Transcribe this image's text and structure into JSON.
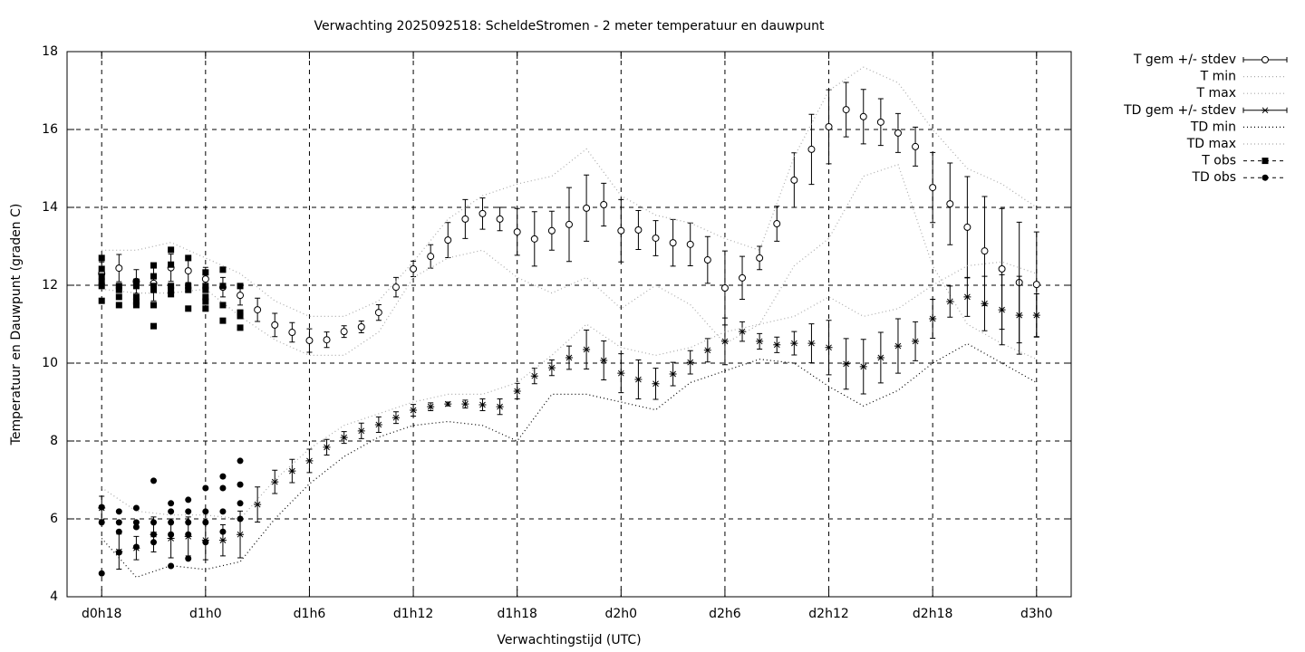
{
  "chart_data": {
    "type": "errorbar",
    "title": "Verwachting 2025092518: ScheldeStromen - 2 meter temperatuur en dauwpunt",
    "xlabel": "Verwachtingstijd (UTC)",
    "ylabel": "Temperatuur en Dauwpunt (graden C)",
    "xlim": [
      16,
      74
    ],
    "ylim": [
      4,
      18
    ],
    "xticks": [
      {
        "value": 18,
        "label": "d0h18"
      },
      {
        "value": 24,
        "label": "d1h0"
      },
      {
        "value": 30,
        "label": "d1h6"
      },
      {
        "value": 36,
        "label": "d1h12"
      },
      {
        "value": 42,
        "label": "d1h18"
      },
      {
        "value": 48,
        "label": "d2h0"
      },
      {
        "value": 54,
        "label": "d2h6"
      },
      {
        "value": 60,
        "label": "d2h12"
      },
      {
        "value": 66,
        "label": "d2h18"
      },
      {
        "value": 72,
        "label": "d3h0"
      }
    ],
    "yticks": [
      4,
      6,
      8,
      10,
      12,
      14,
      16,
      18
    ],
    "grid": true,
    "legend": "outside-top-right",
    "x": [
      18,
      19,
      20,
      21,
      22,
      23,
      24,
      25,
      26,
      27,
      28,
      29,
      30,
      31,
      32,
      33,
      34,
      35,
      36,
      37,
      38,
      39,
      40,
      41,
      42,
      43,
      44,
      45,
      46,
      47,
      48,
      49,
      50,
      51,
      52,
      53,
      54,
      55,
      56,
      57,
      58,
      59,
      60,
      61,
      62,
      63,
      64,
      65,
      66,
      67,
      68,
      69,
      70,
      71,
      72
    ],
    "series": [
      {
        "name": "T gem +/- stdev",
        "kind": "errorbars",
        "marker": "circle",
        "color": "#000000",
        "values": [
          12.3,
          12.44,
          12.1,
          12.05,
          12.45,
          12.37,
          12.16,
          11.95,
          11.74,
          11.37,
          10.98,
          10.79,
          10.58,
          10.6,
          10.81,
          10.93,
          11.3,
          11.95,
          12.42,
          12.74,
          13.16,
          13.7,
          13.84,
          13.7,
          13.37,
          13.19,
          13.4,
          13.56,
          13.98,
          14.07,
          13.4,
          13.42,
          13.21,
          13.09,
          13.05,
          12.65,
          11.93,
          12.19,
          12.7,
          13.58,
          14.7,
          15.49,
          16.07,
          16.51,
          16.33,
          16.19,
          15.91,
          15.56,
          14.51,
          14.09,
          13.49,
          12.88,
          12.42,
          12.07,
          12.02
        ],
        "errors": [
          0.3,
          0.35,
          0.3,
          0.45,
          0.35,
          0.3,
          0.3,
          0.25,
          0.25,
          0.3,
          0.3,
          0.25,
          0.3,
          0.2,
          0.15,
          0.15,
          0.2,
          0.25,
          0.2,
          0.3,
          0.45,
          0.5,
          0.4,
          0.3,
          0.6,
          0.7,
          0.5,
          0.95,
          0.85,
          0.55,
          0.8,
          0.5,
          0.45,
          0.6,
          0.55,
          0.6,
          0.95,
          0.55,
          0.3,
          0.45,
          0.7,
          0.9,
          0.95,
          0.7,
          0.7,
          0.6,
          0.5,
          0.5,
          0.9,
          1.05,
          1.3,
          1.4,
          1.55,
          1.55,
          1.35
        ]
      },
      {
        "name": "T min",
        "kind": "line",
        "color": "#aaaaaa",
        "x": [
          18,
          20,
          22,
          24,
          26,
          28,
          30,
          32,
          34,
          36,
          38,
          40,
          42,
          44,
          46,
          48,
          50,
          52,
          54,
          56,
          58,
          60,
          62,
          64,
          66,
          68,
          70,
          72
        ],
        "values": [
          11.9,
          11.8,
          11.8,
          11.9,
          11.2,
          10.6,
          10.2,
          10.2,
          10.8,
          12.2,
          12.7,
          12.9,
          12.2,
          11.8,
          12.2,
          11.4,
          12.0,
          11.5,
          10.5,
          11.0,
          12.5,
          13.2,
          14.8,
          15.1,
          12.5,
          11.0,
          10.5,
          10.1
        ]
      },
      {
        "name": "T max",
        "kind": "line",
        "color": "#aaaaaa",
        "x": [
          18,
          20,
          22,
          24,
          26,
          28,
          30,
          32,
          34,
          36,
          38,
          40,
          42,
          44,
          46,
          48,
          50,
          52,
          54,
          56,
          58,
          60,
          62,
          64,
          66,
          68,
          70,
          72
        ],
        "values": [
          12.9,
          12.9,
          13.1,
          12.7,
          12.3,
          11.6,
          11.2,
          11.2,
          11.6,
          12.6,
          13.7,
          14.3,
          14.6,
          14.8,
          15.5,
          14.3,
          13.8,
          13.6,
          13.2,
          12.9,
          15.3,
          17.0,
          17.6,
          17.2,
          16.0,
          15.0,
          14.6,
          14.0
        ]
      },
      {
        "name": "TD gem +/- stdev",
        "kind": "errorbars",
        "marker": "star",
        "color": "#000000",
        "values": [
          6.28,
          5.16,
          5.25,
          5.6,
          5.5,
          5.55,
          5.45,
          5.45,
          5.6,
          6.37,
          6.95,
          7.23,
          7.49,
          7.84,
          8.09,
          8.26,
          8.42,
          8.6,
          8.79,
          8.88,
          8.95,
          8.95,
          8.93,
          8.88,
          9.28,
          9.67,
          9.88,
          10.14,
          10.35,
          10.07,
          9.74,
          9.58,
          9.47,
          9.72,
          10.02,
          10.33,
          10.56,
          10.81,
          10.56,
          10.47,
          10.51,
          10.51,
          10.4,
          9.98,
          9.91,
          10.14,
          10.44,
          10.56,
          11.14,
          11.58,
          11.7,
          11.53,
          11.37,
          11.23,
          11.23
        ],
        "errors": [
          0.3,
          0.45,
          0.3,
          0.45,
          0.5,
          0.5,
          0.5,
          0.4,
          0.6,
          0.45,
          0.3,
          0.3,
          0.3,
          0.2,
          0.15,
          0.2,
          0.2,
          0.15,
          0.15,
          0.1,
          0.05,
          0.1,
          0.15,
          0.2,
          0.2,
          0.2,
          0.2,
          0.3,
          0.5,
          0.5,
          0.5,
          0.5,
          0.4,
          0.3,
          0.3,
          0.3,
          0.6,
          0.25,
          0.2,
          0.2,
          0.3,
          0.5,
          0.7,
          0.65,
          0.7,
          0.65,
          0.7,
          0.5,
          0.5,
          0.4,
          0.5,
          0.7,
          0.9,
          1.0,
          0.55
        ]
      },
      {
        "name": "TD min",
        "kind": "line",
        "color": "#000000",
        "x": [
          18,
          20,
          22,
          24,
          26,
          28,
          30,
          32,
          34,
          36,
          38,
          40,
          42,
          44,
          46,
          48,
          50,
          52,
          54,
          56,
          58,
          60,
          62,
          64,
          66,
          68,
          70,
          72
        ],
        "values": [
          5.5,
          4.5,
          4.8,
          4.7,
          4.9,
          6.0,
          6.9,
          7.6,
          8.1,
          8.4,
          8.5,
          8.4,
          8.0,
          9.2,
          9.2,
          9.0,
          8.8,
          9.5,
          9.8,
          10.1,
          10.0,
          9.4,
          8.9,
          9.3,
          10.0,
          10.5,
          10.0,
          9.5
        ]
      },
      {
        "name": "TD max",
        "kind": "line",
        "color": "#aaaaaa",
        "x": [
          18,
          20,
          22,
          24,
          26,
          28,
          30,
          32,
          34,
          36,
          38,
          40,
          42,
          44,
          46,
          48,
          50,
          52,
          54,
          56,
          58,
          60,
          62,
          64,
          66,
          68,
          70,
          72
        ],
        "values": [
          6.8,
          6.2,
          6.1,
          6.1,
          6.0,
          7.0,
          7.8,
          8.4,
          8.7,
          9.0,
          9.2,
          9.2,
          9.5,
          10.2,
          11.0,
          10.4,
          10.2,
          10.4,
          10.8,
          11.0,
          11.2,
          11.7,
          11.2,
          11.4,
          12.0,
          12.5,
          12.6,
          12.3
        ]
      },
      {
        "name": "T obs",
        "kind": "points",
        "marker": "square",
        "color": "#000000",
        "x": [
          18,
          18,
          18,
          18,
          18,
          18,
          19,
          19,
          19,
          19,
          20,
          20,
          20,
          20,
          20,
          21,
          21,
          21,
          21,
          21,
          21,
          22,
          22,
          22,
          22,
          22,
          23,
          23,
          23,
          23,
          24,
          24,
          24,
          24,
          24,
          24,
          25,
          25,
          25,
          25,
          26,
          26,
          26,
          26
        ],
        "values": [
          12.7,
          12.42,
          12.23,
          12.09,
          11.98,
          11.6,
          11.98,
          11.88,
          11.7,
          11.49,
          12.09,
          11.98,
          11.7,
          11.58,
          11.49,
          12.51,
          12.23,
          11.98,
          11.88,
          11.49,
          10.95,
          12.91,
          12.53,
          11.98,
          11.88,
          11.77,
          12.7,
          11.98,
          11.88,
          11.4,
          12.33,
          11.98,
          11.88,
          11.7,
          11.58,
          11.4,
          12.4,
          11.98,
          11.49,
          11.09,
          11.98,
          11.3,
          11.21,
          10.91
        ]
      },
      {
        "name": "TD obs",
        "kind": "points",
        "marker": "dot",
        "color": "#000000",
        "x": [
          18,
          18,
          18,
          19,
          19,
          19,
          19,
          20,
          20,
          20,
          20,
          21,
          21,
          21,
          21,
          22,
          22,
          22,
          22,
          22,
          23,
          23,
          23,
          23,
          23,
          24,
          24,
          24,
          24,
          25,
          25,
          25,
          25,
          26,
          26,
          26,
          26
        ],
        "values": [
          6.3,
          5.91,
          4.6,
          6.19,
          5.91,
          5.67,
          5.14,
          6.28,
          5.91,
          5.79,
          5.28,
          6.98,
          5.91,
          5.6,
          5.4,
          6.4,
          6.19,
          5.91,
          5.6,
          4.79,
          6.49,
          6.19,
          5.91,
          5.6,
          4.98,
          6.79,
          6.19,
          5.91,
          5.4,
          7.09,
          6.79,
          6.19,
          5.67,
          7.49,
          6.88,
          6.4,
          6.0
        ]
      }
    ]
  }
}
